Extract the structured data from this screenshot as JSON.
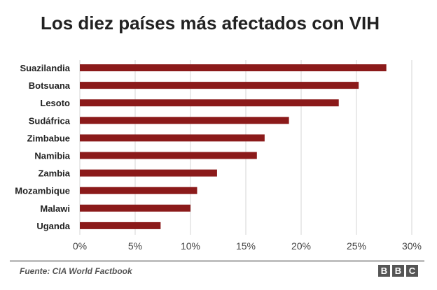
{
  "chart_data": {
    "type": "bar",
    "orientation": "horizontal",
    "title": "Los diez países más afectados con VIH",
    "categories": [
      "Suazilandia",
      "Botsuana",
      "Lesoto",
      "Sudáfrica",
      "Zimbabue",
      "Namibia",
      "Zambia",
      "Mozambique",
      "Malawi",
      "Uganda"
    ],
    "values": [
      27.7,
      25.2,
      23.4,
      18.9,
      16.7,
      16.0,
      12.4,
      10.6,
      10.0,
      7.3
    ],
    "xlim": [
      0,
      30
    ],
    "ticks": [
      "0%",
      "5%",
      "10%",
      "15%",
      "20%",
      "25%",
      "30%"
    ],
    "bar_color": "#8b1a1a",
    "grid": true
  },
  "footer": {
    "source": "Fuente: CIA World Factbook",
    "logo": [
      "B",
      "B",
      "C"
    ]
  }
}
